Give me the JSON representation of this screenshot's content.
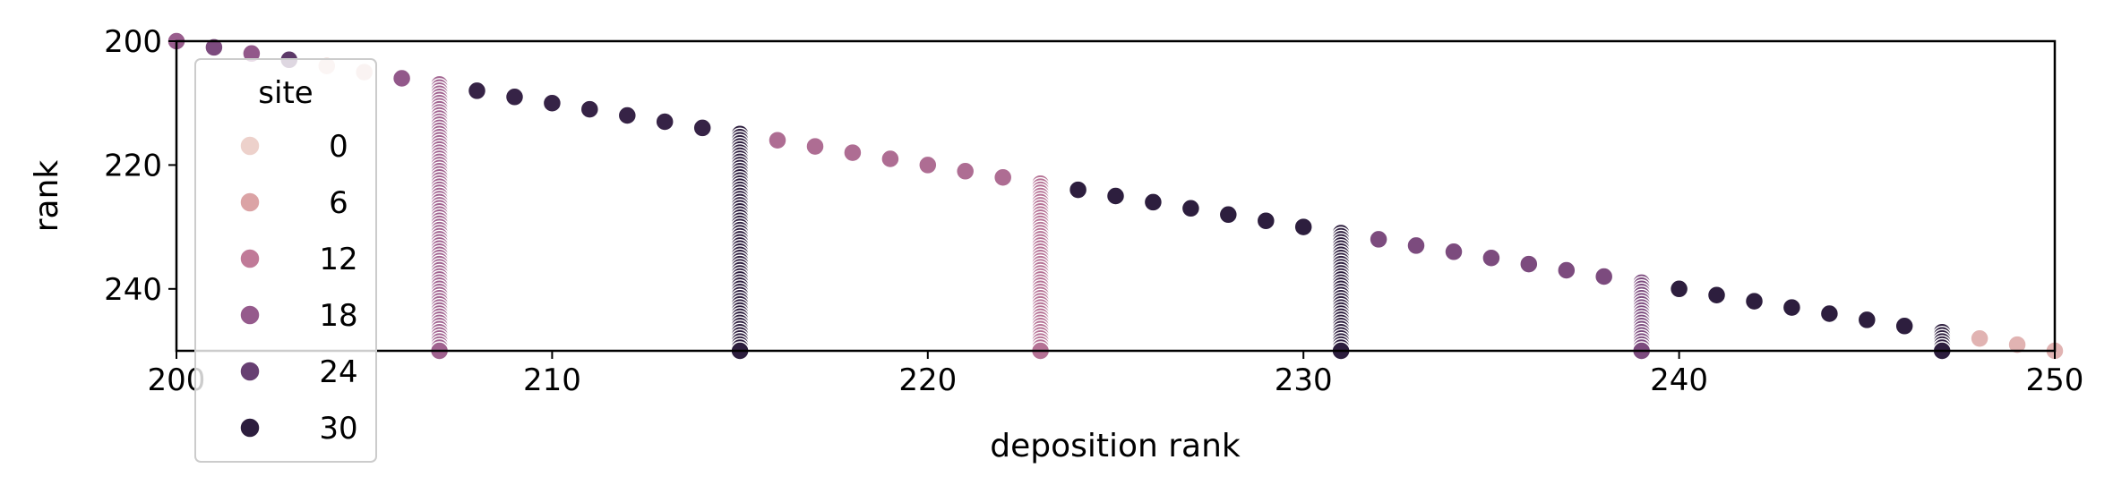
{
  "chart_data": {
    "type": "scatter",
    "title": "",
    "xlabel": "deposition rank",
    "ylabel": "rank",
    "xlim": [
      200,
      250
    ],
    "ylim": [
      250,
      200
    ],
    "y_inverted": true,
    "x_ticks": [
      "200",
      "210",
      "220",
      "230",
      "240",
      "250"
    ],
    "y_ticks": [
      "200",
      "220",
      "240"
    ],
    "grid": false,
    "legend": {
      "title": "site",
      "placement": "upper-left",
      "entries": [
        {
          "label": "0",
          "color": "#edd1cb"
        },
        {
          "label": "6",
          "color": "#dba3a5"
        },
        {
          "label": "12",
          "color": "#c07a98"
        },
        {
          "label": "18",
          "color": "#955a8c"
        },
        {
          "label": "24",
          "color": "#673f72"
        },
        {
          "label": "30",
          "color": "#2d1e3e"
        }
      ]
    },
    "hue_range": [
      0,
      31
    ],
    "series": [
      {
        "x": 200,
        "y": 200,
        "site": 18
      },
      {
        "x": 201,
        "y": 201,
        "site": 22
      },
      {
        "x": 202,
        "y": 202,
        "site": 19
      },
      {
        "x": 203,
        "y": 203,
        "site": 26
      },
      {
        "x": 204,
        "y": 204,
        "site": 1
      },
      {
        "x": 205,
        "y": 205,
        "site": 2
      },
      {
        "x": 206,
        "y": 206,
        "site": 19
      },
      {
        "x": 207,
        "y": [
          207,
          250
        ],
        "site": 17
      },
      {
        "x": 208,
        "y": 208,
        "site": 30
      },
      {
        "x": 209,
        "y": 209,
        "site": 30
      },
      {
        "x": 210,
        "y": 210,
        "site": 30
      },
      {
        "x": 211,
        "y": 211,
        "site": 30
      },
      {
        "x": 212,
        "y": 212,
        "site": 30
      },
      {
        "x": 213,
        "y": 213,
        "site": 30
      },
      {
        "x": 214,
        "y": 214,
        "site": 30
      },
      {
        "x": 215,
        "y": [
          215,
          250
        ],
        "site": 31
      },
      {
        "x": 216,
        "y": 216,
        "site": 15
      },
      {
        "x": 217,
        "y": 217,
        "site": 15
      },
      {
        "x": 218,
        "y": 218,
        "site": 15
      },
      {
        "x": 219,
        "y": 219,
        "site": 15
      },
      {
        "x": 220,
        "y": 220,
        "site": 15
      },
      {
        "x": 221,
        "y": 221,
        "site": 15
      },
      {
        "x": 222,
        "y": 222,
        "site": 15
      },
      {
        "x": 223,
        "y": [
          223,
          250
        ],
        "site": 14
      },
      {
        "x": 224,
        "y": 224,
        "site": 31
      },
      {
        "x": 225,
        "y": 225,
        "site": 31
      },
      {
        "x": 226,
        "y": 226,
        "site": 31
      },
      {
        "x": 227,
        "y": 227,
        "site": 31
      },
      {
        "x": 228,
        "y": 228,
        "site": 31
      },
      {
        "x": 229,
        "y": 229,
        "site": 31
      },
      {
        "x": 230,
        "y": 230,
        "site": 31
      },
      {
        "x": 231,
        "y": [
          231,
          250
        ],
        "site": 31
      },
      {
        "x": 232,
        "y": 232,
        "site": 22
      },
      {
        "x": 233,
        "y": 233,
        "site": 22
      },
      {
        "x": 234,
        "y": 234,
        "site": 22
      },
      {
        "x": 235,
        "y": 235,
        "site": 22
      },
      {
        "x": 236,
        "y": 236,
        "site": 22
      },
      {
        "x": 237,
        "y": 237,
        "site": 22
      },
      {
        "x": 238,
        "y": 238,
        "site": 22
      },
      {
        "x": 239,
        "y": [
          239,
          250
        ],
        "site": 22
      },
      {
        "x": 240,
        "y": 240,
        "site": 31
      },
      {
        "x": 241,
        "y": 241,
        "site": 31
      },
      {
        "x": 242,
        "y": 242,
        "site": 31
      },
      {
        "x": 243,
        "y": 243,
        "site": 31
      },
      {
        "x": 244,
        "y": 244,
        "site": 31
      },
      {
        "x": 245,
        "y": 245,
        "site": 31
      },
      {
        "x": 246,
        "y": 246,
        "site": 31
      },
      {
        "x": 247,
        "y": [
          247,
          250
        ],
        "site": 31
      },
      {
        "x": 248,
        "y": 248,
        "site": 4
      },
      {
        "x": 249,
        "y": 249,
        "site": 4
      },
      {
        "x": 250,
        "y": 250,
        "site": 4
      }
    ]
  }
}
